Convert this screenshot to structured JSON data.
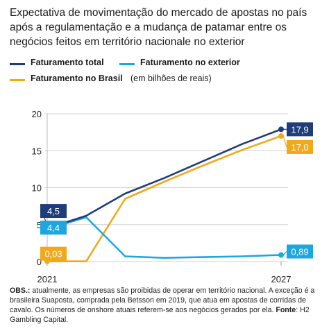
{
  "title": "Expectativa de movimentação do mercado de apostas no país após a regulamentação e a mudança de patamar entre os negócios feitos em território nacionale no exterior",
  "legend": {
    "items": [
      {
        "label": "Faturamento total",
        "color": "#1f3d7a"
      },
      {
        "label": "Faturamento no exterior",
        "color": "#1ea6e0"
      },
      {
        "label": "Faturamento no Brasil",
        "color": "#f2a81d"
      }
    ],
    "unit_note": "(em bilhões de reais)"
  },
  "chart_data": {
    "type": "line",
    "x_tick_labels": [
      "2021",
      "2027"
    ],
    "ylim": [
      0,
      20
    ],
    "y_ticks": [
      "0",
      "5",
      "10",
      "15",
      "20"
    ],
    "grid": true,
    "series": [
      {
        "name": "Faturamento total",
        "color": "#1f3d7a",
        "x": [
          2021,
          2022,
          2023,
          2024,
          2025,
          2026,
          2027
        ],
        "values": [
          4.5,
          6.2,
          9.2,
          11.3,
          13.6,
          15.9,
          17.9
        ],
        "start_label": "4,5",
        "end_label": "17,9"
      },
      {
        "name": "Faturamento no exterior",
        "color": "#1ea6e0",
        "x": [
          2021,
          2022,
          2023,
          2024,
          2025,
          2026,
          2027
        ],
        "values": [
          4.4,
          6.0,
          0.7,
          0.5,
          0.6,
          0.7,
          0.89
        ],
        "start_label": "4,4",
        "end_label": "0,89"
      },
      {
        "name": "Faturamento no Brasil",
        "color": "#f2a81d",
        "x": [
          2021,
          2022,
          2023,
          2024,
          2025,
          2026,
          2027
        ],
        "values": [
          0.03,
          0.03,
          8.5,
          10.8,
          13.0,
          15.1,
          17.0
        ],
        "start_label": "0,03",
        "end_label": "17,0"
      }
    ]
  },
  "footnote": {
    "obs_label": "OBS.:",
    "obs_text": " atualmente, as empresas são proibidas de operar em território nacional. A exceção é a brasileira Suaposta, comprada pela Betsson em 2019, que atua em apostas de corridas de cavalo. Os números de onshore atuais referem-se aos negócios gerados por ela. ",
    "source_label": "Fonte",
    "source_text": ": H2 Gambling Capital."
  }
}
